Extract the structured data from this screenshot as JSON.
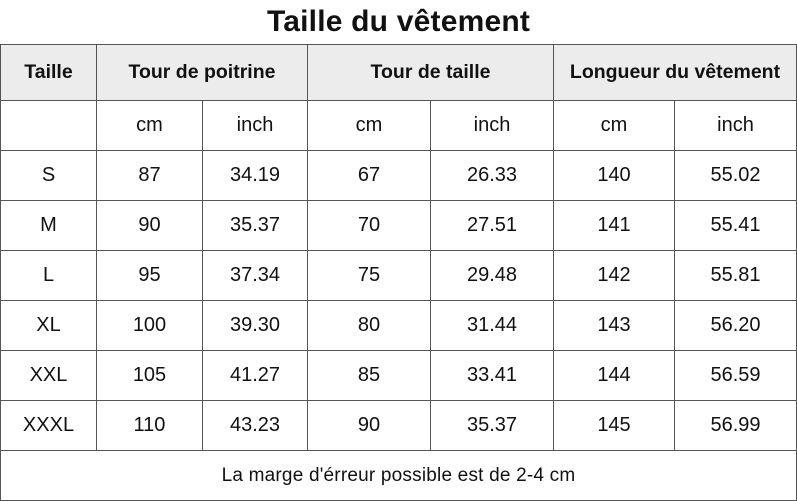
{
  "title": "Taille du vêtement",
  "headers": {
    "size": "Taille",
    "chest": "Tour de poitrine",
    "waist": "Tour de taille",
    "length": "Longueur du vêtement"
  },
  "units": [
    "cm",
    "inch",
    "cm",
    "inch",
    "cm",
    "inch"
  ],
  "rows": [
    {
      "size": "S",
      "chest_cm": "87",
      "chest_inch": "34.19",
      "waist_cm": "67",
      "waist_inch": "26.33",
      "length_cm": "140",
      "length_inch": "55.02"
    },
    {
      "size": "M",
      "chest_cm": "90",
      "chest_inch": "35.37",
      "waist_cm": "70",
      "waist_inch": "27.51",
      "length_cm": "141",
      "length_inch": "55.41"
    },
    {
      "size": "L",
      "chest_cm": "95",
      "chest_inch": "37.34",
      "waist_cm": "75",
      "waist_inch": "29.48",
      "length_cm": "142",
      "length_inch": "55.81"
    },
    {
      "size": "XL",
      "chest_cm": "100",
      "chest_inch": "39.30",
      "waist_cm": "80",
      "waist_inch": "31.44",
      "length_cm": "143",
      "length_inch": "56.20"
    },
    {
      "size": "XXL",
      "chest_cm": "105",
      "chest_inch": "41.27",
      "waist_cm": "85",
      "waist_inch": "33.41",
      "length_cm": "144",
      "length_inch": "56.59"
    },
    {
      "size": "XXXL",
      "chest_cm": "110",
      "chest_inch": "43.23",
      "waist_cm": "90",
      "waist_inch": "35.37",
      "length_cm": "145",
      "length_inch": "56.99"
    }
  ],
  "note": "La marge d'érreur possible est de 2-4 cm"
}
